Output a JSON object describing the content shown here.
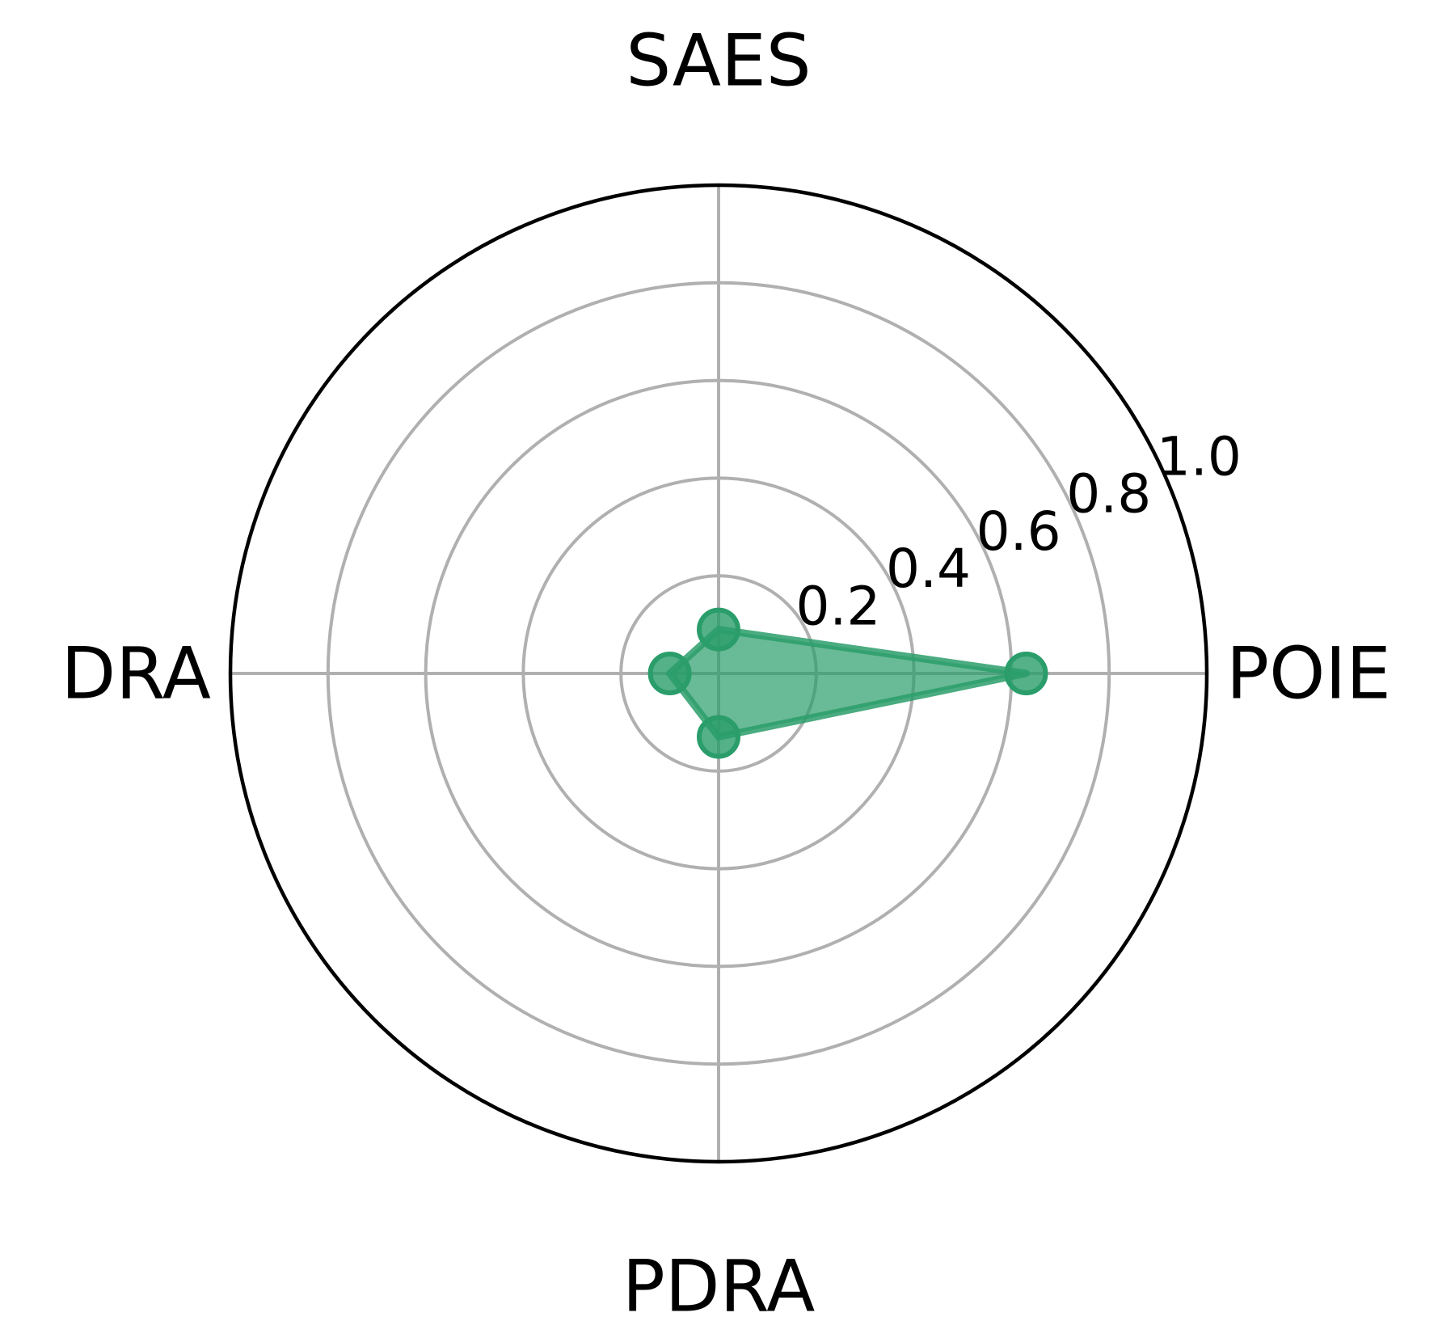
{
  "chart_data": {
    "type": "radar",
    "axes": [
      "POIE",
      "SAES",
      "DRA",
      "PDRA"
    ],
    "series": [
      {
        "values": [
          0.63,
          0.09,
          0.1,
          0.13
        ],
        "color": "#2a9d6a"
      }
    ],
    "rlim": [
      0,
      1.0
    ],
    "radial_ticks": [
      0.2,
      0.4,
      0.6,
      0.8,
      1.0
    ],
    "radial_tick_labels": [
      "0.2",
      "0.4",
      "0.6",
      "0.8",
      "1.0"
    ],
    "grid": true,
    "grid_color": "#b0b0b0",
    "outline_color": "#000000"
  }
}
